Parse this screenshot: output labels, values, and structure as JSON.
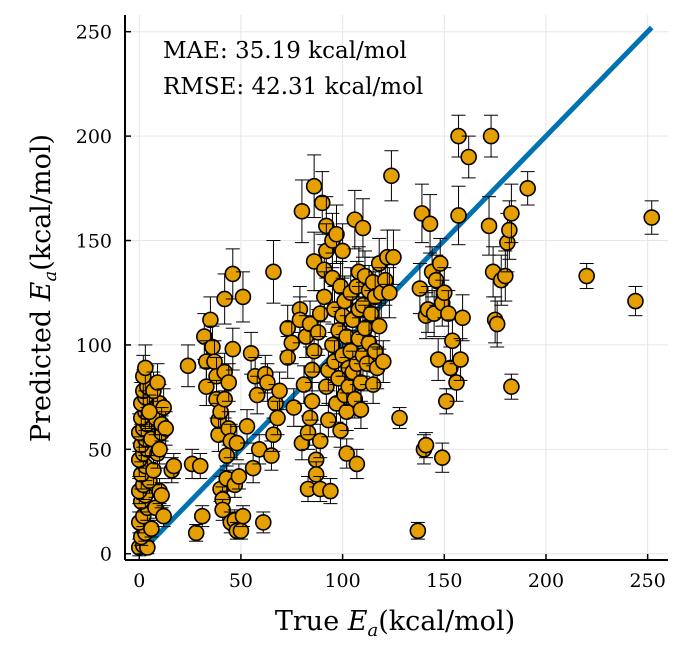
{
  "chart_data": {
    "type": "scatter",
    "xlabel_prefix": "True",
    "xlabel_var": "E",
    "xlabel_sub": "a",
    "xlabel_unit": "(kcal/mol)",
    "ylabel_prefix": "Predicted",
    "ylabel_var": "E",
    "ylabel_sub": "a",
    "ylabel_unit": "(kcal/mol)",
    "xlim": [
      -7,
      260
    ],
    "ylim": [
      -3,
      258
    ],
    "xticks": [
      0,
      50,
      100,
      150,
      200,
      250
    ],
    "yticks": [
      0,
      50,
      100,
      150,
      200,
      250
    ],
    "grid": true,
    "annotations": [
      "MAE: 35.19 kcal/mol",
      "RMSE: 42.31 kcal/mol"
    ],
    "reference_line": {
      "x": [
        6,
        252
      ],
      "y": [
        6,
        252
      ]
    },
    "colors": {
      "marker": "#E69F00",
      "marker_edge": "#000000",
      "line": "#0072B2",
      "grid": "#e6e6e6"
    },
    "points": [
      [
        0,
        3,
        4
      ],
      [
        2,
        4,
        4
      ],
      [
        4,
        3,
        3
      ],
      [
        1,
        8,
        4
      ],
      [
        3,
        10,
        4
      ],
      [
        0,
        15,
        5
      ],
      [
        2,
        18,
        5
      ],
      [
        4,
        22,
        6
      ],
      [
        1,
        25,
        5
      ],
      [
        3,
        28,
        6
      ],
      [
        0,
        30,
        6
      ],
      [
        2,
        33,
        7
      ],
      [
        5,
        35,
        6
      ],
      [
        1,
        38,
        7
      ],
      [
        3,
        42,
        7
      ],
      [
        0,
        45,
        8
      ],
      [
        2,
        48,
        7
      ],
      [
        4,
        50,
        8
      ],
      [
        1,
        52,
        8
      ],
      [
        3,
        55,
        8
      ],
      [
        0,
        58,
        9
      ],
      [
        2,
        60,
        9
      ],
      [
        4,
        62,
        8
      ],
      [
        1,
        65,
        9
      ],
      [
        3,
        68,
        9
      ],
      [
        5,
        70,
        9
      ],
      [
        1,
        72,
        10
      ],
      [
        3,
        75,
        9
      ],
      [
        2,
        78,
        10
      ],
      [
        4,
        80,
        10
      ],
      [
        2,
        85,
        10
      ],
      [
        3,
        89,
        11
      ],
      [
        6,
        12,
        4
      ],
      [
        8,
        22,
        5
      ],
      [
        10,
        30,
        6
      ],
      [
        7,
        40,
        7
      ],
      [
        9,
        48,
        7
      ],
      [
        6,
        55,
        8
      ],
      [
        11,
        58,
        8
      ],
      [
        8,
        65,
        8
      ],
      [
        10,
        72,
        9
      ],
      [
        7,
        78,
        9
      ],
      [
        9,
        82,
        9
      ],
      [
        12,
        70,
        9
      ],
      [
        11,
        62,
        8
      ],
      [
        13,
        60,
        8
      ],
      [
        5,
        68,
        8
      ],
      [
        10,
        50,
        7
      ],
      [
        12,
        18,
        5
      ],
      [
        11,
        28,
        6
      ],
      [
        16,
        40,
        6
      ],
      [
        17,
        42,
        6
      ],
      [
        24,
        90,
        10
      ],
      [
        26,
        43,
        7
      ],
      [
        28,
        10,
        4
      ],
      [
        30,
        42,
        6
      ],
      [
        31,
        18,
        5
      ],
      [
        32,
        104,
        11
      ],
      [
        33,
        92,
        10
      ],
      [
        33,
        80,
        9
      ],
      [
        35,
        112,
        11
      ],
      [
        36,
        99,
        10
      ],
      [
        37,
        92,
        10
      ],
      [
        38,
        85,
        9
      ],
      [
        38,
        74,
        9
      ],
      [
        39,
        64,
        8
      ],
      [
        39,
        57,
        8
      ],
      [
        40,
        68,
        8
      ],
      [
        40,
        31,
        6
      ],
      [
        41,
        26,
        6
      ],
      [
        41,
        21,
        5
      ],
      [
        42,
        74,
        9
      ],
      [
        42,
        87,
        9
      ],
      [
        42,
        122,
        12
      ],
      [
        43,
        47,
        7
      ],
      [
        43,
        36,
        6
      ],
      [
        44,
        82,
        9
      ],
      [
        44,
        60,
        8
      ],
      [
        45,
        54,
        8
      ],
      [
        45,
        15,
        5
      ],
      [
        46,
        134,
        12
      ],
      [
        46,
        98,
        10
      ],
      [
        47,
        33,
        6
      ],
      [
        47,
        16,
        5
      ],
      [
        48,
        53,
        8
      ],
      [
        48,
        11,
        4
      ],
      [
        49,
        37,
        6
      ],
      [
        50,
        11,
        4
      ],
      [
        51,
        18,
        5
      ],
      [
        51,
        123,
        12
      ],
      [
        53,
        61,
        8
      ],
      [
        55,
        96,
        10
      ],
      [
        56,
        41,
        7
      ],
      [
        57,
        85,
        9
      ],
      [
        58,
        76,
        9
      ],
      [
        59,
        50,
        7
      ],
      [
        61,
        15,
        5
      ],
      [
        62,
        86,
        9
      ],
      [
        63,
        82,
        9
      ],
      [
        65,
        47,
        7
      ],
      [
        66,
        135,
        15
      ],
      [
        66,
        57,
        8
      ],
      [
        67,
        72,
        9
      ],
      [
        68,
        65,
        8
      ],
      [
        69,
        78,
        9
      ],
      [
        73,
        108,
        11
      ],
      [
        73,
        94,
        10
      ],
      [
        75,
        101,
        10
      ],
      [
        76,
        70,
        9
      ],
      [
        79,
        117,
        11
      ],
      [
        79,
        112,
        11
      ],
      [
        80,
        164,
        15
      ],
      [
        80,
        53,
        8
      ],
      [
        81,
        81,
        9
      ],
      [
        82,
        104,
        10
      ],
      [
        83,
        58,
        8
      ],
      [
        83,
        31,
        6
      ],
      [
        84,
        110,
        11
      ],
      [
        84,
        65,
        8
      ],
      [
        85,
        88,
        10
      ],
      [
        85,
        73,
        9
      ],
      [
        86,
        176,
        15
      ],
      [
        86,
        140,
        14
      ],
      [
        86,
        97,
        10
      ],
      [
        87,
        45,
        7
      ],
      [
        87,
        38,
        6
      ],
      [
        88,
        106,
        11
      ],
      [
        89,
        115,
        11
      ],
      [
        89,
        54,
        8
      ],
      [
        89,
        31,
        6
      ],
      [
        90,
        168,
        15
      ],
      [
        91,
        136,
        12
      ],
      [
        91,
        123,
        12
      ],
      [
        92,
        157,
        14
      ],
      [
        92,
        145,
        13
      ],
      [
        92,
        80,
        9
      ],
      [
        93,
        88,
        10
      ],
      [
        93,
        64,
        8
      ],
      [
        94,
        30,
        6
      ],
      [
        95,
        150,
        13
      ],
      [
        95,
        132,
        12
      ],
      [
        95,
        100,
        10
      ],
      [
        96,
        117,
        11
      ],
      [
        96,
        92,
        10
      ],
      [
        97,
        153,
        14
      ],
      [
        97,
        72,
        9
      ],
      [
        98,
        107,
        11
      ],
      [
        98,
        84,
        9
      ],
      [
        99,
        128,
        12
      ],
      [
        99,
        59,
        8
      ],
      [
        100,
        145,
        13
      ],
      [
        100,
        114,
        11
      ],
      [
        100,
        95,
        10
      ],
      [
        101,
        121,
        12
      ],
      [
        101,
        76,
        9
      ],
      [
        102,
        104,
        10
      ],
      [
        102,
        68,
        9
      ],
      [
        102,
        48,
        7
      ],
      [
        103,
        89,
        10
      ],
      [
        103,
        80,
        9
      ],
      [
        104,
        125,
        12
      ],
      [
        104,
        97,
        10
      ],
      [
        105,
        112,
        11
      ],
      [
        105,
        87,
        10
      ],
      [
        106,
        160,
        14
      ],
      [
        106,
        74,
        9
      ],
      [
        107,
        128,
        12
      ],
      [
        107,
        91,
        10
      ],
      [
        107,
        43,
        7
      ],
      [
        108,
        135,
        12
      ],
      [
        108,
        117,
        11
      ],
      [
        108,
        103,
        10
      ],
      [
        109,
        82,
        9
      ],
      [
        109,
        69,
        9
      ],
      [
        110,
        156,
        14
      ],
      [
        110,
        119,
        11
      ],
      [
        110,
        95,
        10
      ],
      [
        111,
        133,
        12
      ],
      [
        111,
        108,
        11
      ],
      [
        112,
        91,
        10
      ],
      [
        113,
        126,
        12
      ],
      [
        113,
        101,
        10
      ],
      [
        114,
        115,
        11
      ],
      [
        115,
        130,
        12
      ],
      [
        115,
        81,
        9
      ],
      [
        116,
        97,
        10
      ],
      [
        116,
        123,
        12
      ],
      [
        117,
        89,
        10
      ],
      [
        118,
        139,
        12
      ],
      [
        118,
        109,
        11
      ],
      [
        119,
        125,
        12
      ],
      [
        120,
        92,
        10
      ],
      [
        121,
        131,
        12
      ],
      [
        122,
        142,
        13
      ],
      [
        123,
        125,
        12
      ],
      [
        124,
        181,
        12
      ],
      [
        125,
        142,
        13
      ],
      [
        128,
        65,
        5
      ],
      [
        137,
        11,
        4
      ],
      [
        138,
        127,
        12
      ],
      [
        139,
        163,
        14
      ],
      [
        140,
        50,
        7
      ],
      [
        141,
        114,
        11
      ],
      [
        141,
        52,
        6
      ],
      [
        142,
        117,
        11
      ],
      [
        143,
        158,
        14
      ],
      [
        144,
        135,
        12
      ],
      [
        145,
        115,
        11
      ],
      [
        146,
        131,
        12
      ],
      [
        147,
        93,
        10
      ],
      [
        148,
        139,
        12
      ],
      [
        149,
        46,
        7
      ],
      [
        149,
        120,
        11
      ],
      [
        150,
        125,
        12
      ],
      [
        151,
        73,
        6
      ],
      [
        152,
        115,
        11
      ],
      [
        153,
        89,
        10
      ],
      [
        154,
        102,
        10
      ],
      [
        156,
        82,
        9
      ],
      [
        157,
        162,
        14
      ],
      [
        157,
        200,
        10
      ],
      [
        158,
        93,
        10
      ],
      [
        159,
        113,
        11
      ],
      [
        162,
        190,
        10
      ],
      [
        172,
        157,
        14
      ],
      [
        173,
        200,
        10
      ],
      [
        174,
        135,
        12
      ],
      [
        175,
        112,
        11
      ],
      [
        176,
        110,
        11
      ],
      [
        178,
        131,
        12
      ],
      [
        180,
        133,
        12
      ],
      [
        181,
        149,
        14
      ],
      [
        182,
        155,
        14
      ],
      [
        183,
        80,
        6
      ],
      [
        183,
        163,
        14
      ],
      [
        191,
        175,
        8
      ],
      [
        220,
        133,
        6
      ],
      [
        244,
        121,
        7
      ],
      [
        252,
        161,
        8
      ]
    ]
  }
}
